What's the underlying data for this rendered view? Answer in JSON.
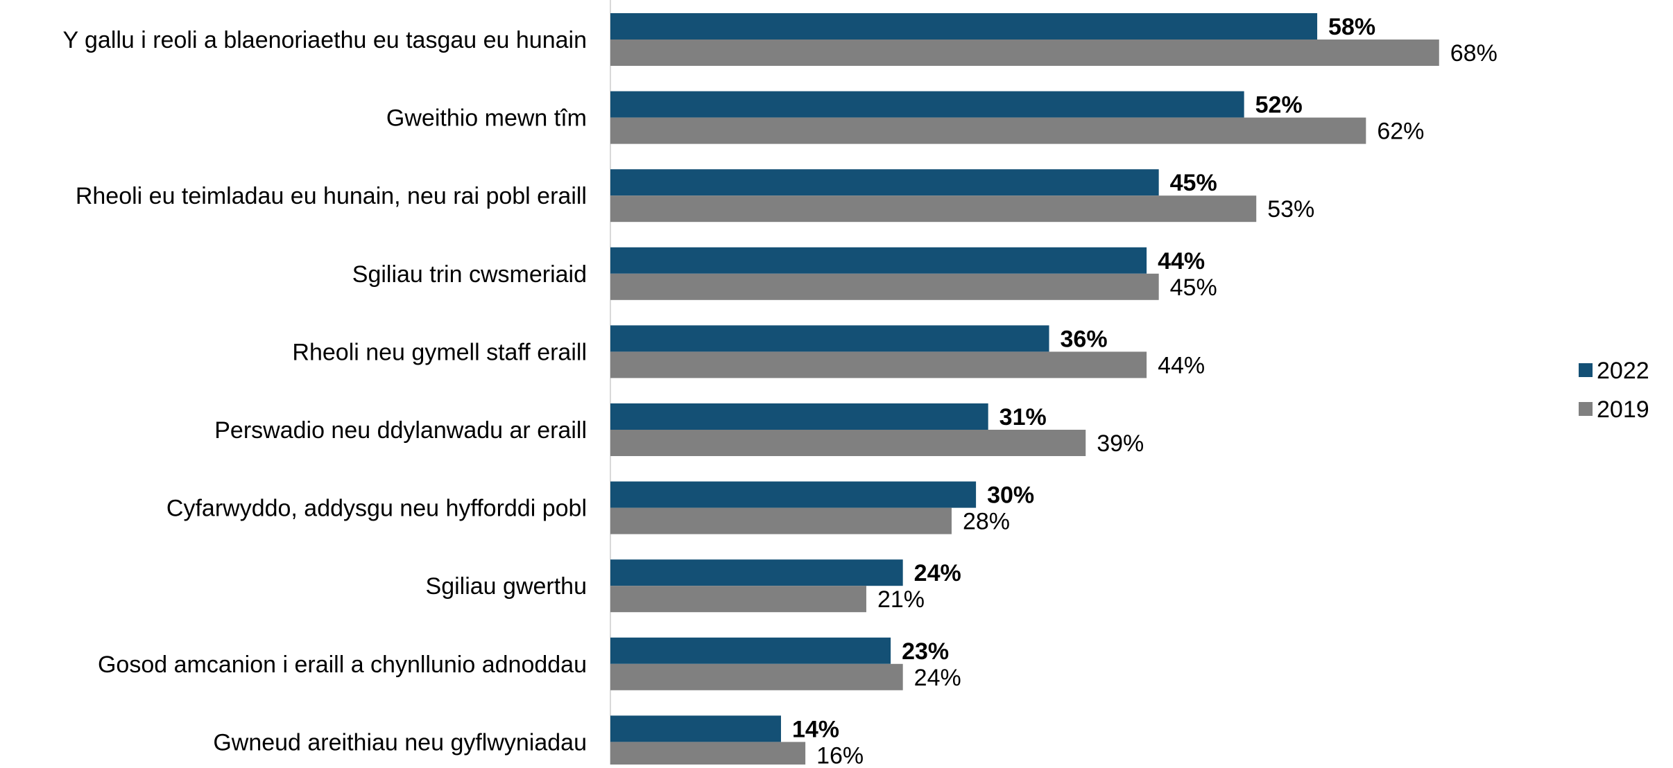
{
  "chart_data": {
    "type": "bar",
    "orientation": "horizontal",
    "categories": [
      "Y gallu i reoli a blaenoriaethu eu tasgau eu hunain",
      "Gweithio mewn tîm",
      "Rheoli eu teimladau eu hunain, neu rai pobl eraill",
      "Sgiliau trin cwsmeriaid",
      "Rheoli neu gymell staff eraill",
      "Perswadio neu ddylanwadu ar eraill",
      "Cyfarwyddo, addysgu neu hyfforddi pobl",
      "Sgiliau gwerthu",
      "Gosod amcanion i eraill a chynllunio adnoddau",
      "Gwneud areithiau neu gyflwyniadau"
    ],
    "series": [
      {
        "name": "2022",
        "color": "#145075",
        "label_weight": "bold",
        "values": [
          58,
          52,
          45,
          44,
          36,
          31,
          30,
          24,
          23,
          14
        ],
        "labels": [
          "58%",
          "52%",
          "45%",
          "44%",
          "36%",
          "31%",
          "30%",
          "24%",
          "23%",
          "14%"
        ]
      },
      {
        "name": "2019",
        "color": "#808080",
        "label_weight": "normal",
        "values": [
          68,
          62,
          53,
          45,
          44,
          39,
          28,
          21,
          24,
          16
        ],
        "labels": [
          "68%",
          "62%",
          "53%",
          "45%",
          "44%",
          "39%",
          "28%",
          "21%",
          "24%",
          "16%"
        ]
      }
    ],
    "xlim": [
      0,
      100
    ],
    "unit": "%",
    "grid": false,
    "legend_position": "right",
    "legend": [
      "2022",
      "2019"
    ]
  }
}
